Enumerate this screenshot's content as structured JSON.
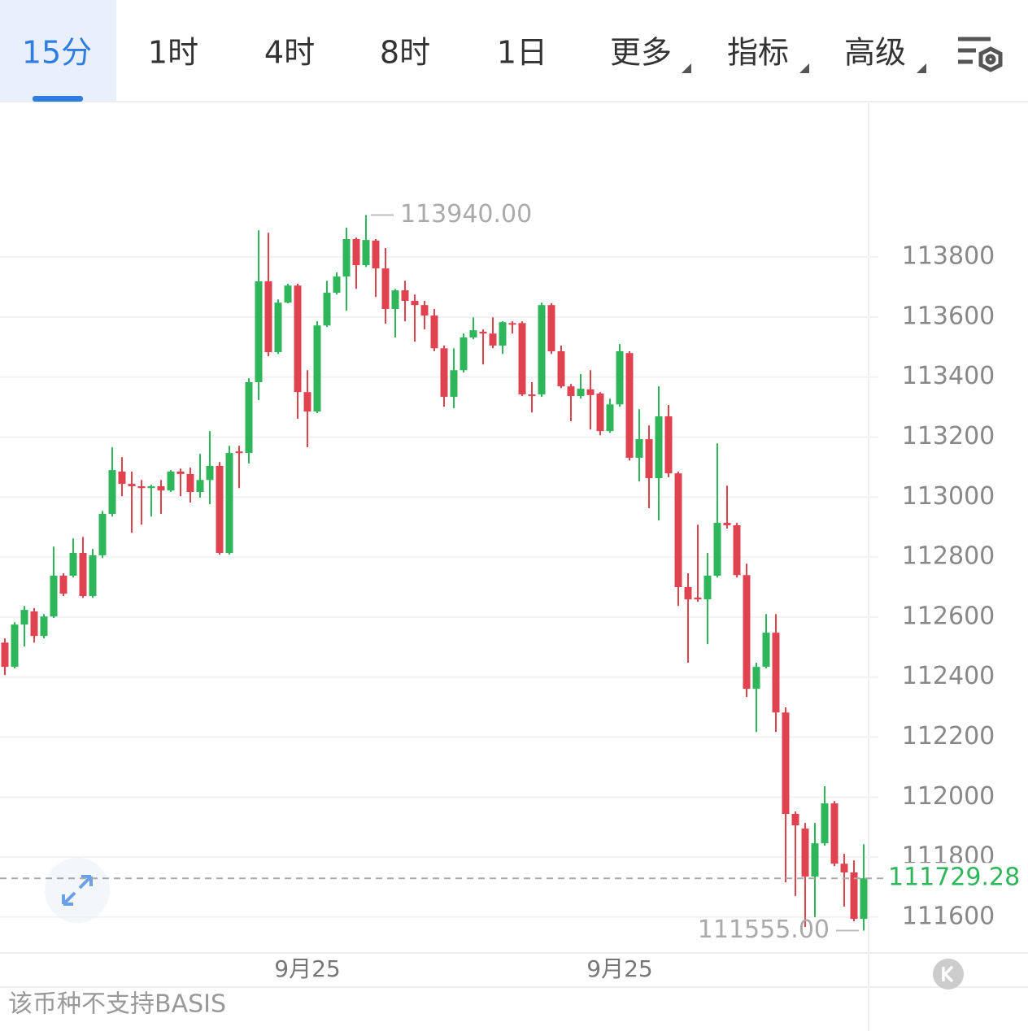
{
  "tabs": {
    "items": [
      "15分",
      "1时",
      "4时",
      "8时",
      "1日",
      "更多",
      "指标",
      "高级"
    ],
    "selected": 0
  },
  "footer": {
    "text": "该币种不支持BASIS"
  },
  "chart_data": {
    "type": "candlestick",
    "categories": [
      null,
      null,
      null,
      null,
      null,
      null,
      null,
      null,
      null,
      null,
      null,
      null,
      null,
      null,
      null,
      null,
      null,
      null,
      null,
      null,
      null,
      null,
      null,
      null,
      null,
      null,
      null,
      null,
      null,
      null,
      null,
      "9月25",
      null,
      null,
      null,
      null,
      null,
      null,
      null,
      null,
      null,
      null,
      null,
      null,
      null,
      null,
      null,
      null,
      null,
      null,
      null,
      null,
      null,
      null,
      null,
      null,
      null,
      null,
      null,
      null,
      null,
      null,
      null,
      "9月25",
      null,
      null,
      null,
      null,
      null,
      null,
      null,
      null,
      null,
      null,
      null,
      null,
      null,
      null,
      null,
      null,
      null,
      null,
      null,
      null,
      null,
      null,
      null,
      null,
      null
    ],
    "open": [
      112515,
      112434,
      112575,
      112619,
      112537,
      112602,
      112738,
      112738,
      112814,
      112670,
      112806,
      112944,
      113085,
      113044,
      113036,
      113030,
      113036,
      113022,
      113085,
      113077,
      113017,
      113057,
      113104,
      112814,
      113152,
      113147,
      113383,
      113719,
      113483,
      113648,
      113705,
      113350,
      113285,
      113572,
      113681,
      113735,
      113860,
      113773,
      113855,
      113762,
      113627,
      113689,
      113654,
      113640,
      113605,
      113496,
      113334,
      113423,
      113532,
      113551,
      113545,
      113505,
      113580,
      113580,
      113342,
      113342,
      113640,
      113486,
      113369,
      113337,
      113359,
      113345,
      113220,
      113309,
      113480,
      113131,
      113193,
      113063,
      113269,
      113079,
      112700,
      112665,
      112659,
      112738,
      112914,
      112906,
      112740,
      112361,
      112434,
      112548,
      112282,
      111944,
      111895,
      111735,
      111846,
      111979,
      111778,
      111749,
      111594
    ],
    "high": [
      112529,
      112583,
      112637,
      112630,
      112610,
      112835,
      112746,
      112862,
      112867,
      112827,
      112954,
      113166,
      113133,
      113085,
      113057,
      113041,
      113057,
      113090,
      113095,
      113098,
      113144,
      113220,
      113117,
      113171,
      113171,
      113396,
      113889,
      113881,
      113659,
      113711,
      113711,
      113423,
      113586,
      113721,
      113749,
      113898,
      113865,
      113940,
      113860,
      113830,
      113694,
      113721,
      113675,
      113654,
      113627,
      113505,
      113496,
      113545,
      113599,
      113559,
      113599,
      113586,
      113586,
      113586,
      113383,
      113648,
      113646,
      113505,
      113377,
      113410,
      113423,
      113350,
      113328,
      113510,
      113486,
      113293,
      113239,
      113369,
      113307,
      113085,
      112746,
      112908,
      112814,
      113179,
      113038,
      112914,
      112778,
      112448,
      112610,
      112610,
      112299,
      111952,
      111914,
      111914,
      112036,
      111987,
      111811,
      111789,
      111843
    ],
    "low": [
      112407,
      112429,
      112502,
      112515,
      112529,
      112597,
      112670,
      112732,
      112664,
      112664,
      112797,
      112935,
      113003,
      112881,
      112908,
      112935,
      112944,
      113017,
      113003,
      112982,
      112998,
      112976,
      112808,
      112808,
      113030,
      113112,
      113323,
      113469,
      113477,
      113646,
      113261,
      113166,
      113280,
      113567,
      113675,
      113621,
      113694,
      113767,
      113667,
      113578,
      113532,
      113586,
      113518,
      113559,
      113486,
      113301,
      113296,
      113415,
      113526,
      113442,
      113496,
      113477,
      113545,
      113337,
      113282,
      113334,
      113477,
      113363,
      113253,
      113328,
      113225,
      113206,
      113214,
      113301,
      113122,
      113052,
      112963,
      112922,
      113066,
      112637,
      112448,
      112651,
      112510,
      112732,
      112895,
      112732,
      112334,
      112217,
      112429,
      112217,
      111716,
      111670,
      111567,
      111600,
      111838,
      111770,
      111635,
      111586,
      111555
    ],
    "close": [
      112434,
      112575,
      112624,
      112537,
      112602,
      112738,
      112678,
      112814,
      112670,
      112806,
      112944,
      113090,
      113044,
      113036,
      113030,
      113036,
      113022,
      113085,
      113077,
      113017,
      113057,
      113104,
      112814,
      113147,
      113147,
      113383,
      113719,
      113483,
      113648,
      113705,
      113350,
      113285,
      113572,
      113681,
      113735,
      113860,
      113773,
      113857,
      113762,
      113627,
      113689,
      113654,
      113640,
      113605,
      113496,
      113334,
      113423,
      113532,
      113556,
      113545,
      113505,
      113583,
      113575,
      113342,
      113339,
      113640,
      113486,
      113369,
      113337,
      113361,
      113340,
      113220,
      113309,
      113486,
      113131,
      113193,
      113063,
      113269,
      113079,
      112700,
      112659,
      112659,
      112738,
      112914,
      112906,
      112740,
      112361,
      112434,
      112548,
      112282,
      111944,
      111906,
      111735,
      111846,
      111979,
      111778,
      111749,
      111594,
      111729.28
    ],
    "up_color": "#2fb65a",
    "down_color": "#e0434f",
    "ylim": [
      111486,
      114318
    ],
    "yticks": [
      111600,
      111800,
      112000,
      112200,
      112400,
      112600,
      112800,
      113000,
      113200,
      113400,
      113600,
      113800
    ],
    "grid": true,
    "max_label": {
      "value": 113940,
      "label": "113940.00"
    },
    "min_label": {
      "value": 111555,
      "label": "111555.00"
    },
    "last_price": {
      "value": 111729.28,
      "label": "111729.28"
    }
  }
}
